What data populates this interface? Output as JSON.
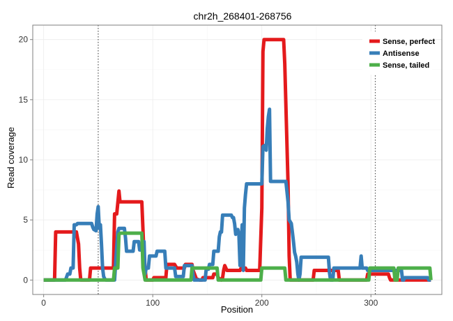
{
  "chart_data": {
    "type": "line",
    "title": "chr2h_268401-268756",
    "xlabel": "Position",
    "ylabel": "Read coverage",
    "xlim": [
      -10,
      365
    ],
    "ylim": [
      -1.2,
      21.2
    ],
    "x_ticks": [
      0,
      100,
      200,
      300
    ],
    "y_ticks": [
      0,
      5,
      10,
      15,
      20
    ],
    "grid": true,
    "legend_position": "top-right",
    "vlines": [
      50,
      304
    ],
    "series": [
      {
        "name": "Sense, perfect",
        "color": "#e41a1c",
        "points": [
          [
            0,
            0
          ],
          [
            10,
            0
          ],
          [
            11,
            4
          ],
          [
            30,
            4
          ],
          [
            32,
            3
          ],
          [
            33,
            1
          ],
          [
            34,
            0
          ],
          [
            42,
            0
          ],
          [
            43,
            1
          ],
          [
            64,
            1
          ],
          [
            65,
            5.5
          ],
          [
            67,
            5.5
          ],
          [
            69,
            7.4
          ],
          [
            70,
            6.5
          ],
          [
            90,
            6.5
          ],
          [
            92,
            2
          ],
          [
            93,
            1
          ],
          [
            94,
            0
          ],
          [
            100,
            0
          ],
          [
            101,
            0.2
          ],
          [
            112,
            0.2
          ],
          [
            113,
            1.3
          ],
          [
            120,
            1.3
          ],
          [
            122,
            1
          ],
          [
            129,
            1
          ],
          [
            130,
            1.3
          ],
          [
            136,
            1.3
          ],
          [
            137,
            0.8
          ],
          [
            140,
            0.1
          ],
          [
            143,
            0
          ],
          [
            145,
            0
          ],
          [
            146,
            0.2
          ],
          [
            155,
            0.2
          ],
          [
            156,
            0.5
          ],
          [
            159,
            0.5
          ],
          [
            160,
            0.2
          ],
          [
            163,
            0
          ],
          [
            164,
            0.2
          ],
          [
            165,
            0.8
          ],
          [
            166,
            1.2
          ],
          [
            168,
            0.8
          ],
          [
            180,
            0.8
          ],
          [
            181,
            1
          ],
          [
            185,
            1
          ],
          [
            186,
            0.8
          ],
          [
            198,
            0.8
          ],
          [
            200,
            6
          ],
          [
            201,
            19
          ],
          [
            202,
            20
          ],
          [
            220,
            20
          ],
          [
            221,
            18
          ],
          [
            224,
            8
          ],
          [
            225,
            2
          ],
          [
            226,
            0
          ],
          [
            247,
            0
          ],
          [
            248,
            0.8
          ],
          [
            270,
            0.8
          ],
          [
            271,
            0
          ],
          [
            296,
            0
          ],
          [
            297,
            0.5
          ],
          [
            316,
            0.5
          ],
          [
            317,
            0.2
          ],
          [
            318,
            0
          ],
          [
            355,
            0
          ]
        ]
      },
      {
        "name": "Antisense",
        "color": "#377eb8",
        "points": [
          [
            0,
            0
          ],
          [
            20,
            0
          ],
          [
            22,
            0.5
          ],
          [
            24,
            0.5
          ],
          [
            25,
            1
          ],
          [
            27,
            1
          ],
          [
            28,
            4.6
          ],
          [
            30,
            4.6
          ],
          [
            31,
            4.7
          ],
          [
            44,
            4.7
          ],
          [
            45,
            4.4
          ],
          [
            46,
            4.2
          ],
          [
            48,
            4.1
          ],
          [
            49,
            5.5
          ],
          [
            50,
            6.1
          ],
          [
            51,
            4.3
          ],
          [
            52,
            4.6
          ],
          [
            53,
            3
          ],
          [
            54,
            1
          ],
          [
            55,
            0.3
          ],
          [
            56,
            0.1
          ],
          [
            57,
            0
          ],
          [
            65,
            0
          ],
          [
            67,
            2.8
          ],
          [
            68,
            4
          ],
          [
            69,
            4.3
          ],
          [
            74,
            4.3
          ],
          [
            75,
            3.5
          ],
          [
            76,
            2.4
          ],
          [
            82,
            2.4
          ],
          [
            83,
            3.2
          ],
          [
            87,
            3.2
          ],
          [
            88,
            2.5
          ],
          [
            90,
            2.5
          ],
          [
            92,
            3.2
          ],
          [
            93,
            0.5
          ],
          [
            94,
            1
          ],
          [
            96,
            1
          ],
          [
            97,
            2
          ],
          [
            103,
            2
          ],
          [
            104,
            2.4
          ],
          [
            111,
            2.4
          ],
          [
            112,
            1
          ],
          [
            120,
            1
          ],
          [
            121,
            0.3
          ],
          [
            128,
            0.3
          ],
          [
            129,
            1.2
          ],
          [
            136,
            1.2
          ],
          [
            137,
            0.4
          ],
          [
            138,
            0
          ],
          [
            148,
            0
          ],
          [
            149,
            0.9
          ],
          [
            151,
            0.9
          ],
          [
            152,
            1.3
          ],
          [
            155,
            1.3
          ],
          [
            156,
            2.4
          ],
          [
            160,
            2.4
          ],
          [
            161,
            3.6
          ],
          [
            162,
            4
          ],
          [
            163,
            4
          ],
          [
            164,
            5.4
          ],
          [
            172,
            5.4
          ],
          [
            173,
            5.2
          ],
          [
            174,
            5.2
          ],
          [
            175,
            4.7
          ],
          [
            176,
            3.8
          ],
          [
            177,
            4
          ],
          [
            178,
            4.2
          ],
          [
            179,
            3.8
          ],
          [
            180,
            1.2
          ],
          [
            182,
            4.6
          ],
          [
            183,
            0.8
          ],
          [
            184,
            6
          ],
          [
            185,
            7.1
          ],
          [
            186,
            8
          ],
          [
            200,
            8
          ],
          [
            201,
            11.1
          ],
          [
            203,
            11.2
          ],
          [
            204,
            10.8
          ],
          [
            205,
            12.6
          ],
          [
            206,
            13.6
          ],
          [
            207,
            14.2
          ],
          [
            208,
            8.2
          ],
          [
            222,
            8.2
          ],
          [
            223,
            7.4
          ],
          [
            224,
            6.5
          ],
          [
            225,
            5
          ],
          [
            227,
            4.7
          ],
          [
            228,
            4
          ],
          [
            229,
            3.2
          ],
          [
            230,
            2.3
          ],
          [
            231,
            2
          ],
          [
            232,
            1.5
          ],
          [
            233,
            0.5
          ],
          [
            234,
            0
          ],
          [
            235,
            0.5
          ],
          [
            236,
            1.9
          ],
          [
            261,
            1.9
          ],
          [
            262,
            0.6
          ],
          [
            263,
            0
          ],
          [
            265,
            0
          ],
          [
            266,
            1
          ],
          [
            290,
            1
          ],
          [
            291,
            2
          ],
          [
            292,
            1
          ],
          [
            296,
            1
          ],
          [
            297,
            0.8
          ],
          [
            328,
            0.8
          ],
          [
            329,
            0
          ],
          [
            330,
            0
          ],
          [
            331,
            0.2
          ],
          [
            352,
            0.2
          ],
          [
            353,
            0
          ],
          [
            355,
            0
          ]
        ]
      },
      {
        "name": "Sense, tailed",
        "color": "#4daf4a",
        "points": [
          [
            0,
            0
          ],
          [
            64,
            0
          ],
          [
            65,
            1
          ],
          [
            68,
            1
          ],
          [
            69,
            3.8
          ],
          [
            70,
            3.9
          ],
          [
            90,
            3.9
          ],
          [
            91,
            1
          ],
          [
            92,
            0.5
          ],
          [
            93,
            0
          ],
          [
            135,
            0
          ],
          [
            136,
            1
          ],
          [
            159,
            1
          ],
          [
            160,
            0
          ],
          [
            199,
            0
          ],
          [
            200,
            1
          ],
          [
            221,
            1
          ],
          [
            222,
            0
          ],
          [
            298,
            0
          ],
          [
            299,
            1
          ],
          [
            321,
            1
          ],
          [
            322,
            0
          ],
          [
            324,
            0
          ],
          [
            325,
            1
          ],
          [
            354,
            1
          ],
          [
            355,
            0
          ]
        ]
      }
    ]
  }
}
